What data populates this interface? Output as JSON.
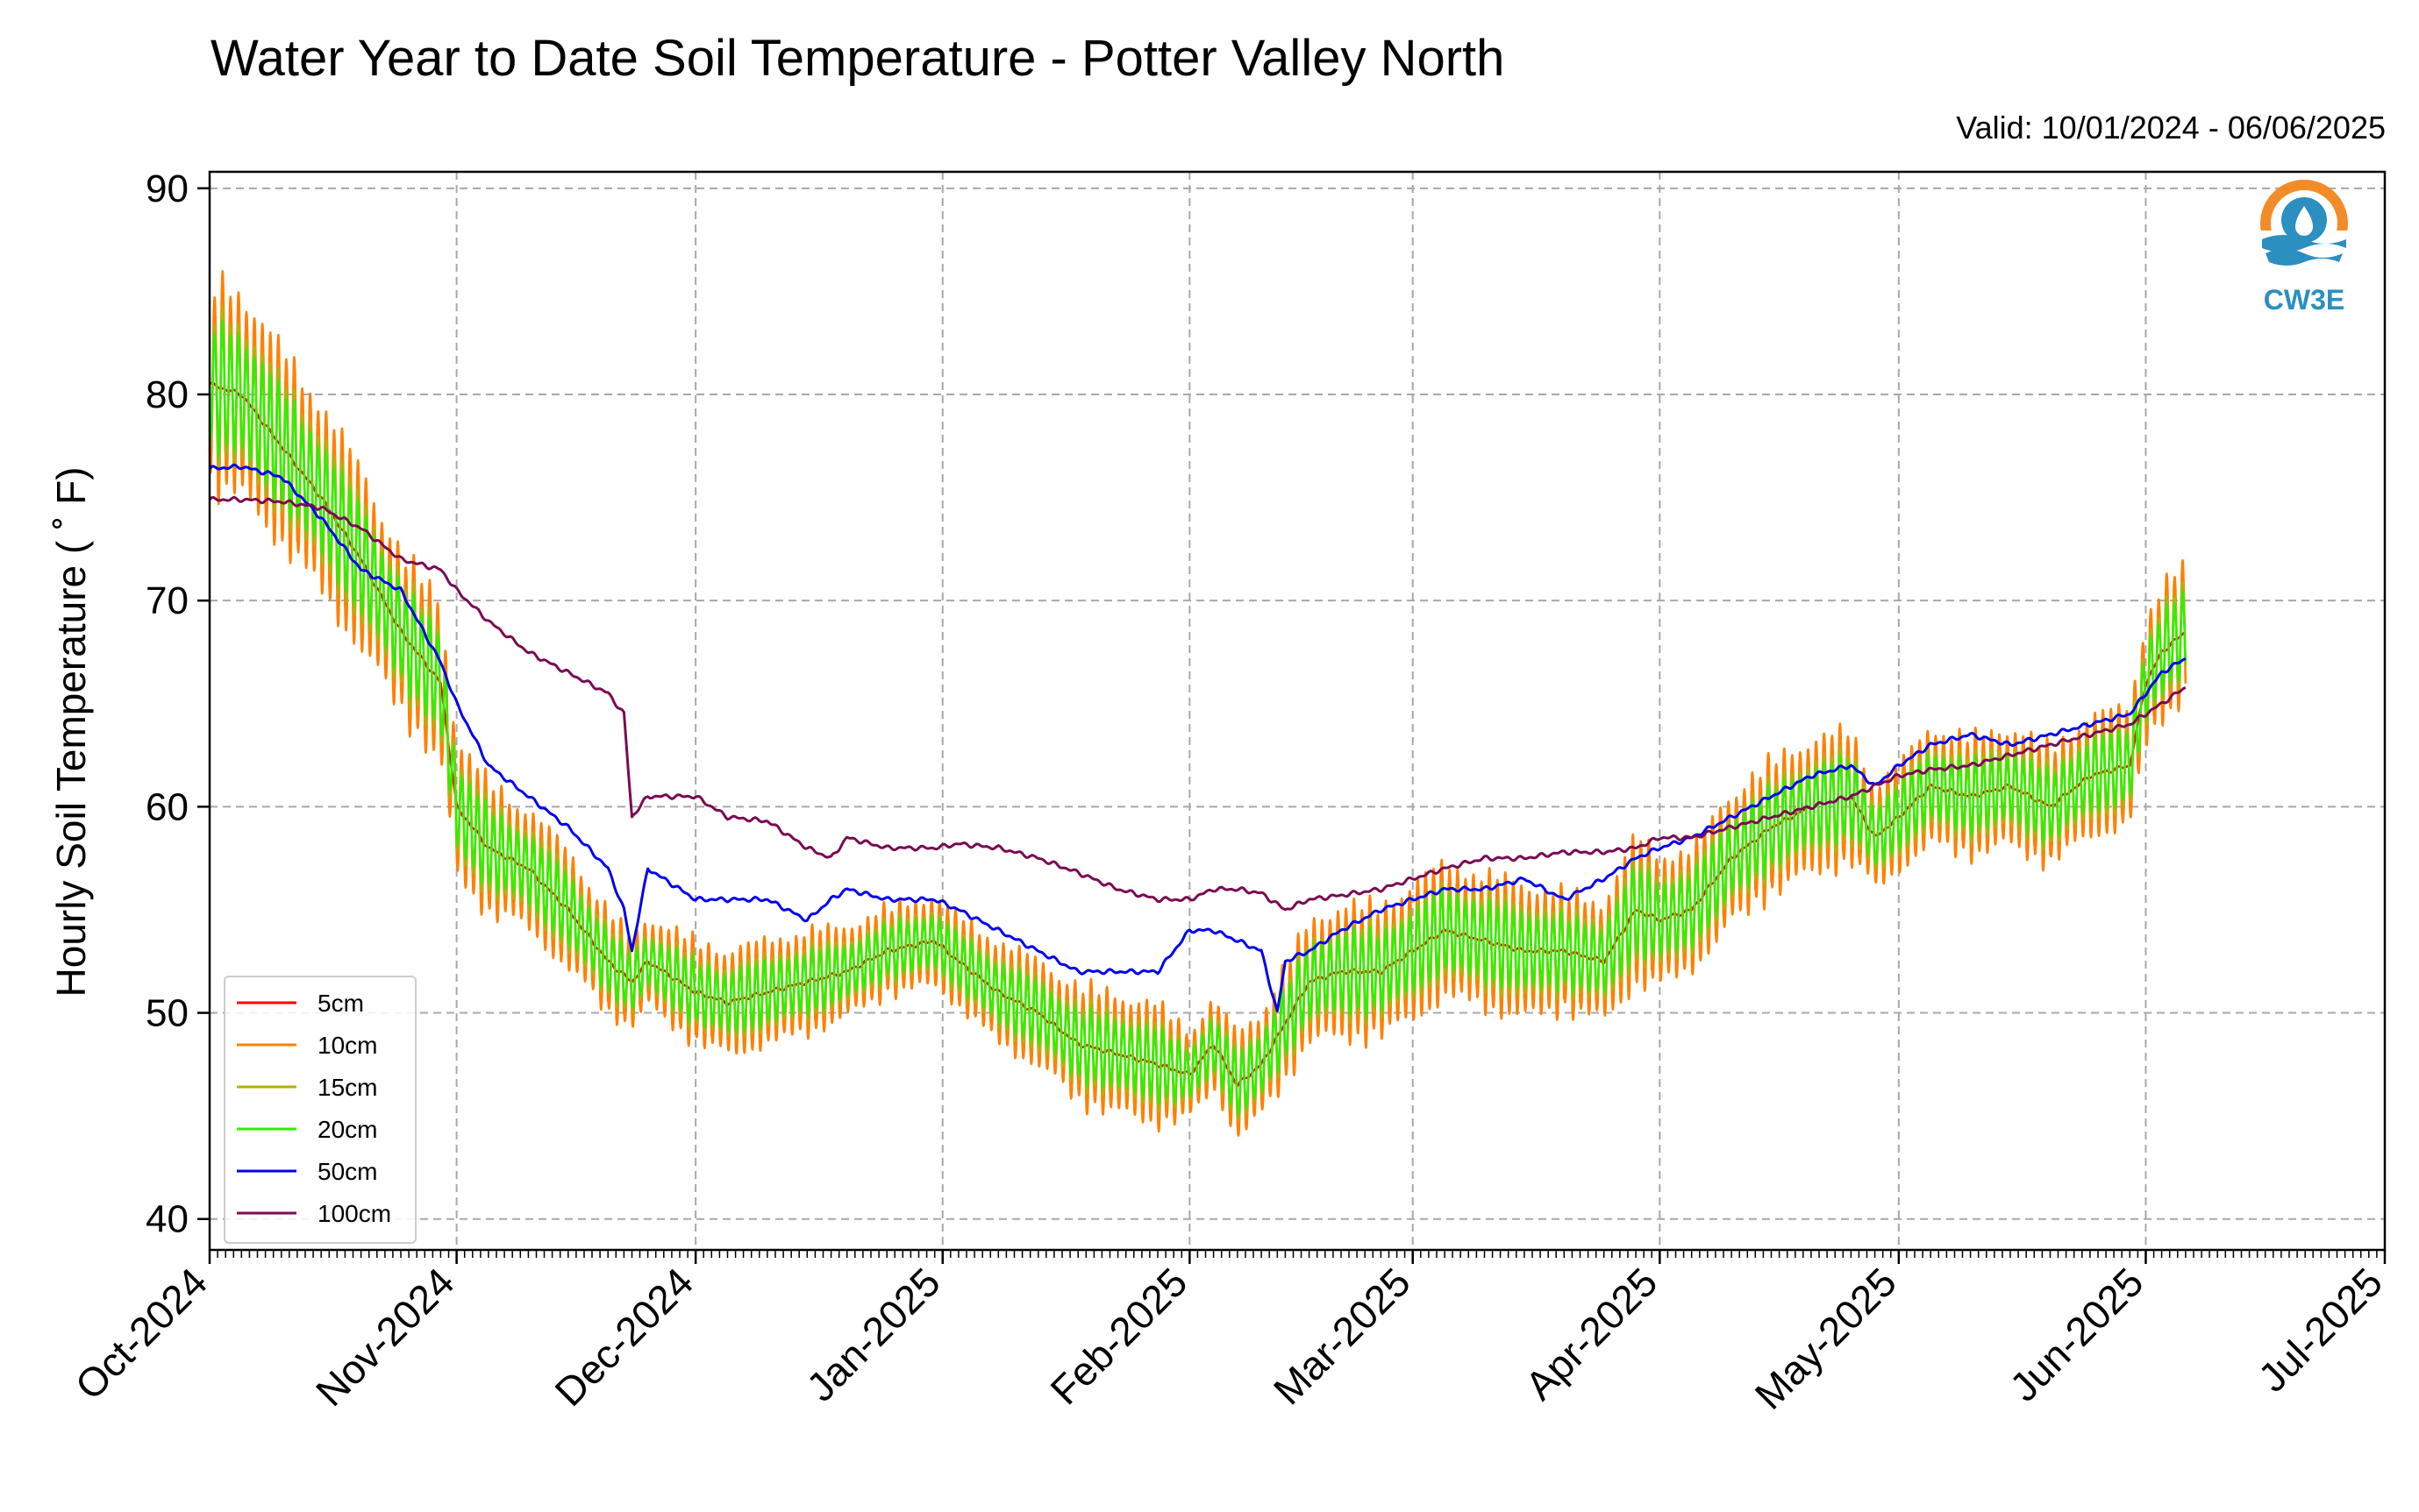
{
  "chart_data": {
    "type": "line",
    "title": "Water Year to Date Soil Temperature - Potter Valley North",
    "subtitle": "Valid: 10/01/2024 - 06/06/2025",
    "xlabel": "",
    "ylabel": "Hourly Soil Temperature ( ˚ F)",
    "xlim": [
      "2024-10-01",
      "2025-07-01"
    ],
    "ylim": [
      38.5,
      90.8
    ],
    "yticks": [
      40,
      50,
      60,
      70,
      80,
      90
    ],
    "xticks": [
      {
        "date": "2024-10-01",
        "label": "Oct-2024"
      },
      {
        "date": "2024-11-01",
        "label": "Nov-2024"
      },
      {
        "date": "2024-12-01",
        "label": "Dec-2024"
      },
      {
        "date": "2025-01-01",
        "label": "Jan-2025"
      },
      {
        "date": "2025-02-01",
        "label": "Feb-2025"
      },
      {
        "date": "2025-03-01",
        "label": "Mar-2025"
      },
      {
        "date": "2025-04-01",
        "label": "Apr-2025"
      },
      {
        "date": "2025-05-01",
        "label": "May-2025"
      },
      {
        "date": "2025-06-01",
        "label": "Jun-2025"
      },
      {
        "date": "2025-07-01",
        "label": "Jul-2025"
      }
    ],
    "grid": true,
    "legend_position": "lower-left",
    "series": [
      {
        "name": "5cm",
        "color": "#ff0000",
        "amplitude": 1.0,
        "x": [
          "2024-10-01",
          "2024-10-05",
          "2024-10-10",
          "2024-10-15",
          "2024-10-20",
          "2024-10-25",
          "2024-10-30",
          "2024-11-01",
          "2024-11-05",
          "2024-11-10",
          "2024-11-15",
          "2024-11-20",
          "2024-11-23",
          "2024-11-25",
          "2024-12-01",
          "2024-12-05",
          "2024-12-10",
          "2024-12-15",
          "2024-12-20",
          "2024-12-25",
          "2024-12-31",
          "2025-01-03",
          "2025-01-08",
          "2025-01-13",
          "2025-01-18",
          "2025-01-23",
          "2025-01-28",
          "2025-02-01",
          "2025-02-04",
          "2025-02-07",
          "2025-02-10",
          "2025-02-13",
          "2025-02-16",
          "2025-02-20",
          "2025-02-25",
          "2025-03-01",
          "2025-03-05",
          "2025-03-10",
          "2025-03-15",
          "2025-03-20",
          "2025-03-25",
          "2025-03-29",
          "2025-04-01",
          "2025-04-05",
          "2025-04-10",
          "2025-04-15",
          "2025-04-20",
          "2025-04-25",
          "2025-04-28",
          "2025-05-01",
          "2025-05-05",
          "2025-05-10",
          "2025-05-15",
          "2025-05-20",
          "2025-05-25",
          "2025-05-30",
          "2025-06-01",
          "2025-06-03",
          "2025-06-06"
        ],
        "y": [
          80.5,
          80.0,
          77.5,
          75.0,
          72.0,
          68.5,
          66.0,
          60.0,
          58.0,
          57.0,
          55.0,
          52.5,
          51.5,
          52.5,
          51.0,
          50.5,
          51.0,
          51.5,
          52.0,
          53.0,
          53.5,
          52.5,
          51.0,
          50.0,
          48.5,
          48.0,
          47.5,
          47.0,
          48.5,
          46.5,
          47.5,
          49.5,
          51.5,
          52.0,
          52.0,
          53.0,
          54.0,
          53.5,
          53.0,
          53.0,
          52.5,
          55.0,
          54.5,
          55.0,
          57.5,
          59.0,
          60.0,
          60.5,
          58.5,
          59.5,
          61.0,
          60.5,
          61.0,
          60.0,
          61.5,
          62.0,
          66.0,
          67.5,
          68.5
        ],
        "amp": [
          7.0,
          7.0,
          6.5,
          6.5,
          6.0,
          5.5,
          5.5,
          4.5,
          4.5,
          4.0,
          4.0,
          3.5,
          3.0,
          3.0,
          3.5,
          3.5,
          3.5,
          3.5,
          3.0,
          3.0,
          3.0,
          3.0,
          3.5,
          3.5,
          4.0,
          4.0,
          4.0,
          3.0,
          3.0,
          3.5,
          3.5,
          4.0,
          4.0,
          4.5,
          4.5,
          4.5,
          4.5,
          4.5,
          4.5,
          4.0,
          4.0,
          5.0,
          4.5,
          4.0,
          4.5,
          4.5,
          4.5,
          4.5,
          3.5,
          3.5,
          4.0,
          4.0,
          4.0,
          4.0,
          4.0,
          4.0,
          4.5,
          4.5,
          4.5
        ]
      },
      {
        "name": "10cm",
        "color": "#ff8000",
        "amplitude": 0.72
      },
      {
        "name": "15cm",
        "color": "#b3b300",
        "amplitude": 0.5
      },
      {
        "name": "20cm",
        "color": "#33ee00",
        "amplitude": 0.42
      },
      {
        "name": "50cm",
        "color": "#0000ee",
        "x": [
          "2024-10-01",
          "2024-10-05",
          "2024-10-10",
          "2024-10-15",
          "2024-10-20",
          "2024-10-25",
          "2024-10-30",
          "2024-11-01",
          "2024-11-05",
          "2024-11-10",
          "2024-11-15",
          "2024-11-20",
          "2024-11-22",
          "2024-11-23",
          "2024-11-25",
          "2024-12-01",
          "2024-12-05",
          "2024-12-10",
          "2024-12-15",
          "2024-12-18",
          "2024-12-20",
          "2024-12-25",
          "2024-12-31",
          "2025-01-03",
          "2025-01-08",
          "2025-01-13",
          "2025-01-18",
          "2025-01-23",
          "2025-01-28",
          "2025-02-01",
          "2025-02-04",
          "2025-02-07",
          "2025-02-10",
          "2025-02-12",
          "2025-02-13",
          "2025-02-16",
          "2025-02-20",
          "2025-02-25",
          "2025-03-01",
          "2025-03-05",
          "2025-03-10",
          "2025-03-15",
          "2025-03-20",
          "2025-03-25",
          "2025-03-29",
          "2025-04-01",
          "2025-04-05",
          "2025-04-10",
          "2025-04-15",
          "2025-04-20",
          "2025-04-25",
          "2025-04-28",
          "2025-05-01",
          "2025-05-05",
          "2025-05-10",
          "2025-05-15",
          "2025-05-20",
          "2025-05-25",
          "2025-05-30",
          "2025-06-01",
          "2025-06-03",
          "2025-06-06"
        ],
        "y": [
          76.4,
          76.5,
          76.0,
          74.0,
          71.5,
          70.5,
          67.0,
          65.0,
          62.0,
          60.5,
          59.0,
          57.0,
          55.0,
          53.0,
          57.0,
          55.5,
          55.5,
          55.5,
          54.5,
          55.5,
          56.0,
          55.5,
          55.5,
          55.0,
          54.0,
          53.0,
          52.0,
          52.0,
          52.0,
          54.0,
          54.0,
          53.5,
          53.0,
          50.0,
          52.5,
          53.0,
          54.0,
          55.0,
          55.5,
          56.0,
          56.0,
          56.5,
          55.5,
          56.5,
          57.5,
          58.0,
          58.5,
          59.5,
          60.5,
          61.5,
          62.0,
          61.0,
          62.0,
          63.0,
          63.5,
          63.0,
          63.5,
          64.0,
          64.5,
          65.5,
          66.5,
          67.2
        ]
      },
      {
        "name": "100cm",
        "color": "#7a0a52",
        "x": [
          "2024-10-01",
          "2024-10-05",
          "2024-10-10",
          "2024-10-15",
          "2024-10-20",
          "2024-10-25",
          "2024-10-30",
          "2024-11-01",
          "2024-11-05",
          "2024-11-10",
          "2024-11-15",
          "2024-11-20",
          "2024-11-22",
          "2024-11-23",
          "2024-11-25",
          "2024-12-01",
          "2024-12-05",
          "2024-12-10",
          "2024-12-15",
          "2024-12-18",
          "2024-12-20",
          "2024-12-25",
          "2024-12-31",
          "2025-01-03",
          "2025-01-08",
          "2025-01-13",
          "2025-01-18",
          "2025-01-23",
          "2025-01-28",
          "2025-02-01",
          "2025-02-04",
          "2025-02-07",
          "2025-02-10",
          "2025-02-13",
          "2025-02-16",
          "2025-02-20",
          "2025-02-25",
          "2025-03-01",
          "2025-03-05",
          "2025-03-10",
          "2025-03-15",
          "2025-03-20",
          "2025-03-25",
          "2025-03-29",
          "2025-04-01",
          "2025-04-05",
          "2025-04-10",
          "2025-04-15",
          "2025-04-20",
          "2025-04-25",
          "2025-04-28",
          "2025-05-01",
          "2025-05-05",
          "2025-05-10",
          "2025-05-15",
          "2025-05-20",
          "2025-05-25",
          "2025-05-30",
          "2025-06-01",
          "2025-06-03",
          "2025-06-06"
        ],
        "y": [
          74.9,
          74.9,
          74.8,
          74.5,
          73.5,
          72.0,
          71.5,
          70.5,
          69.0,
          67.5,
          66.5,
          65.5,
          64.5,
          59.5,
          60.5,
          60.5,
          59.5,
          59.3,
          58.0,
          57.5,
          58.5,
          58.0,
          58.0,
          58.2,
          58.0,
          57.5,
          56.8,
          56.0,
          55.5,
          55.5,
          56.0,
          56.0,
          55.8,
          55.0,
          55.5,
          55.7,
          56.0,
          56.5,
          57.0,
          57.5,
          57.5,
          57.8,
          57.8,
          58.0,
          58.5,
          58.5,
          59.0,
          59.5,
          60.0,
          60.5,
          61.0,
          61.5,
          61.8,
          62.0,
          62.5,
          63.0,
          63.5,
          64.0,
          64.5,
          65.0,
          65.8
        ]
      }
    ]
  },
  "logo": {
    "text": "CW3E"
  }
}
